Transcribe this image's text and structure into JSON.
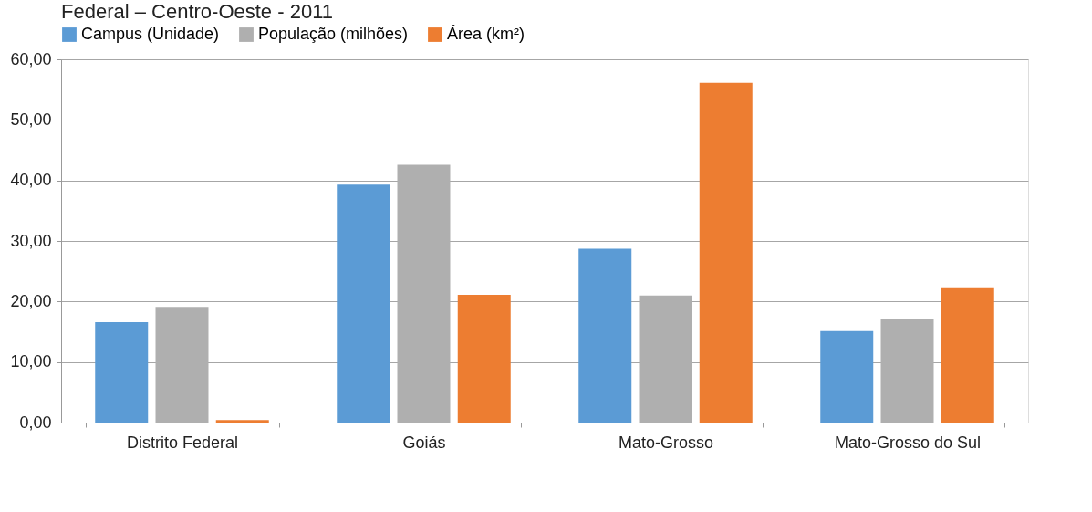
{
  "chart_data": {
    "type": "bar",
    "title": "Federal – Centro-Oeste - 2011",
    "categories": [
      "Distrito Federal",
      "Goiás",
      "Mato-Grosso",
      "Mato-Grosso do Sul"
    ],
    "series": [
      {
        "name": "Campus (Unidade)",
        "color": "#5b9bd5",
        "values": [
          16.6,
          39.3,
          28.7,
          15.1
        ]
      },
      {
        "name": "População (milhões)",
        "color": "#afafaf",
        "values": [
          19.1,
          42.6,
          21.0,
          17.1
        ]
      },
      {
        "name": "Área (km²)",
        "color": "#ed7d31",
        "values": [
          0.4,
          21.1,
          56.1,
          22.2
        ]
      }
    ],
    "ylim": [
      0,
      60
    ],
    "yticks": [
      {
        "value": 0,
        "label": "0,00"
      },
      {
        "value": 10,
        "label": "10,00"
      },
      {
        "value": 20,
        "label": "20,00"
      },
      {
        "value": 30,
        "label": "30,00"
      },
      {
        "value": 40,
        "label": "40,00"
      },
      {
        "value": 50,
        "label": "50,00"
      },
      {
        "value": 60,
        "label": "60,00"
      }
    ],
    "grid": "y",
    "legend": "top"
  }
}
